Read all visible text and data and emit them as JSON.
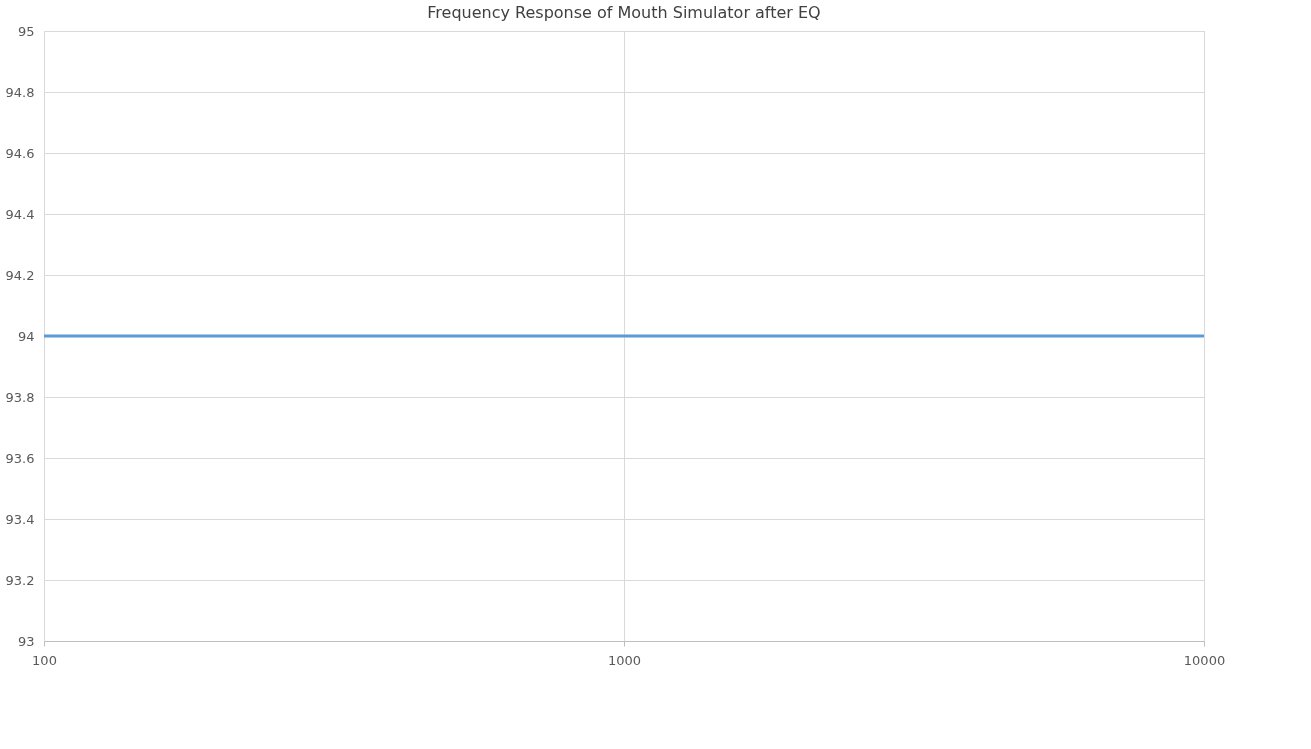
{
  "chart_data": {
    "type": "line",
    "title": "Frequency Response of Mouth Simulator after EQ",
    "x": [
      100,
      10000
    ],
    "series": [
      {
        "color": "#5b9bd5",
        "values": [
          94,
          94
        ]
      }
    ],
    "xlim": [
      100,
      10000
    ],
    "xticks": [
      100,
      1000,
      10000
    ],
    "log": "x",
    "ylim": [
      93,
      95
    ],
    "yticks": [
      93,
      93.2,
      93.4,
      93.6,
      93.8,
      94,
      94.2,
      94.4,
      94.6,
      94.8,
      95
    ],
    "grid": true,
    "marker": "none",
    "line_style": "solid"
  }
}
